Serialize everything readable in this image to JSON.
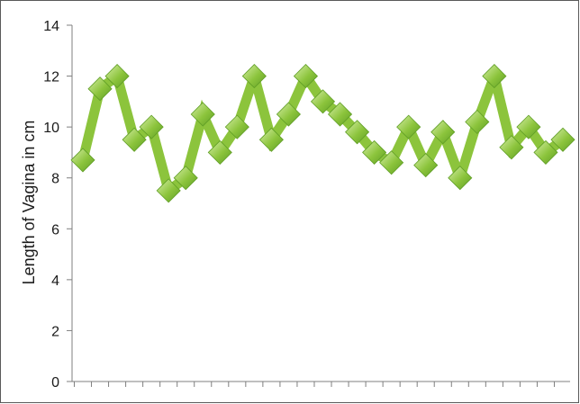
{
  "chart_data": {
    "type": "line",
    "title": "",
    "xlabel": "",
    "ylabel": "Length of Vagina in cm",
    "ylim": [
      0,
      14
    ],
    "yticks": [
      "0",
      "2",
      "4",
      "6",
      "8",
      "10",
      "12",
      "14"
    ],
    "grid": false,
    "legend": "none",
    "marker": "diamond",
    "colors": {
      "line": "#8cc43c",
      "marker_light": "#d7efa8",
      "marker_dark": "#5f9e25",
      "axis": "#7f7f7f",
      "frame": "#595959"
    },
    "series": [
      {
        "values": [
          8.7,
          11.5,
          12.0,
          9.5,
          10.0,
          7.5,
          8.0,
          10.5,
          9.0,
          10.0,
          12.0,
          9.5,
          10.5,
          12.0,
          11.0,
          10.5,
          9.8,
          9.0,
          8.6,
          10.0,
          8.5,
          9.8,
          8.0,
          10.2,
          12.0,
          9.2,
          10.0,
          9.0,
          9.5
        ]
      }
    ]
  }
}
